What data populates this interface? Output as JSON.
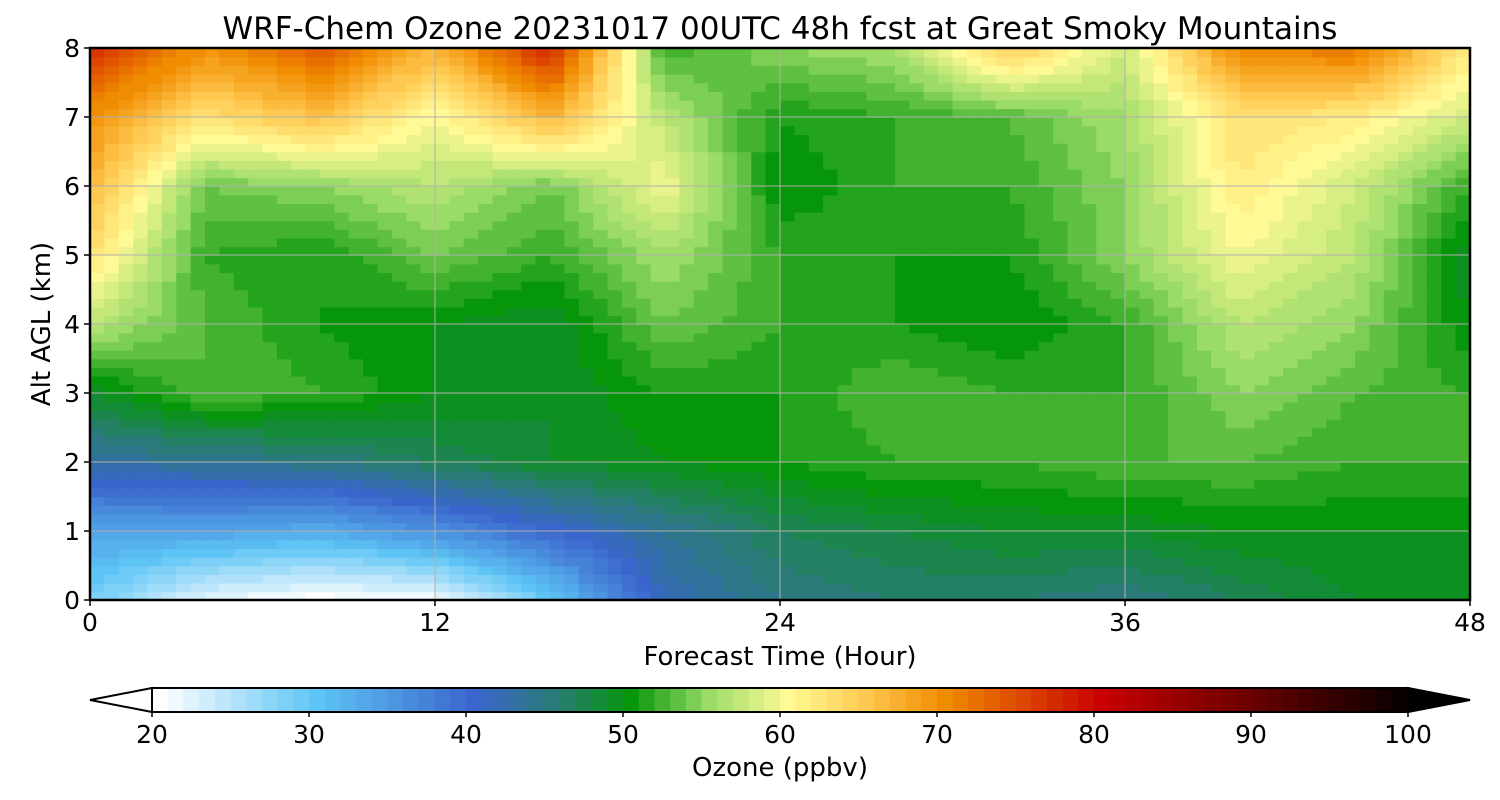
{
  "chart_data": {
    "type": "heatmap",
    "title": "WRF-Chem Ozone  20231017 00UTC 48h fcst at Great Smoky Mountains",
    "xlabel": "Forecast Time (Hour)",
    "ylabel": "Alt AGL (km)",
    "xlim": [
      0,
      48
    ],
    "ylim": [
      0,
      8
    ],
    "xticks": [
      0,
      12,
      24,
      36,
      48
    ],
    "yticks": [
      0,
      1,
      2,
      3,
      4,
      5,
      6,
      7,
      8
    ],
    "grid": true,
    "x_hours": [
      0,
      4,
      8,
      12,
      16,
      20,
      24,
      28,
      32,
      36,
      40,
      44,
      48
    ],
    "y_km": [
      0,
      1,
      2,
      3,
      4,
      5,
      6,
      7,
      8
    ],
    "ozone_ppbv": [
      [
        29,
        22,
        20,
        21,
        30,
        42,
        45,
        46,
        46,
        45,
        47,
        49,
        50
      ],
      [
        34,
        34,
        33,
        36,
        40,
        44,
        47,
        48,
        49,
        49,
        50,
        50,
        50
      ],
      [
        43,
        44,
        45,
        47,
        49,
        50,
        51,
        52,
        52,
        53,
        53,
        52,
        52
      ],
      [
        49,
        53,
        52,
        50,
        49,
        51,
        51,
        53,
        52,
        52,
        55,
        53,
        52
      ],
      [
        57,
        53,
        51,
        50,
        49,
        54,
        52,
        51,
        50,
        52,
        57,
        55,
        50
      ],
      [
        63,
        52,
        51,
        54,
        52,
        56,
        52,
        51,
        51,
        55,
        60,
        57,
        49
      ],
      [
        67,
        54,
        55,
        57,
        54,
        60,
        50,
        52,
        52,
        55,
        62,
        58,
        52
      ],
      [
        70,
        63,
        66,
        60,
        67,
        57,
        51,
        52,
        53,
        56,
        63,
        62,
        58
      ],
      [
        77,
        70,
        74,
        67,
        78,
        52,
        55,
        56,
        65,
        58,
        71,
        72,
        62
      ]
    ],
    "colorbar": {
      "label": "Ozone  (ppbv)",
      "min": 20,
      "max": 100,
      "ticks": [
        20,
        30,
        40,
        50,
        60,
        70,
        80,
        90,
        100
      ],
      "extend": "both",
      "stops": [
        {
          "value": 20,
          "color": "#ffffff"
        },
        {
          "value": 30,
          "color": "#5ec4f5"
        },
        {
          "value": 40,
          "color": "#3a65cc"
        },
        {
          "value": 45,
          "color": "#2a7a7a"
        },
        {
          "value": 50,
          "color": "#06960a"
        },
        {
          "value": 55,
          "color": "#9bdc66"
        },
        {
          "value": 60,
          "color": "#fffa96"
        },
        {
          "value": 65,
          "color": "#ffc850"
        },
        {
          "value": 70,
          "color": "#f08c00"
        },
        {
          "value": 80,
          "color": "#c80000"
        },
        {
          "value": 90,
          "color": "#640000"
        },
        {
          "value": 100,
          "color": "#000000"
        }
      ]
    }
  }
}
